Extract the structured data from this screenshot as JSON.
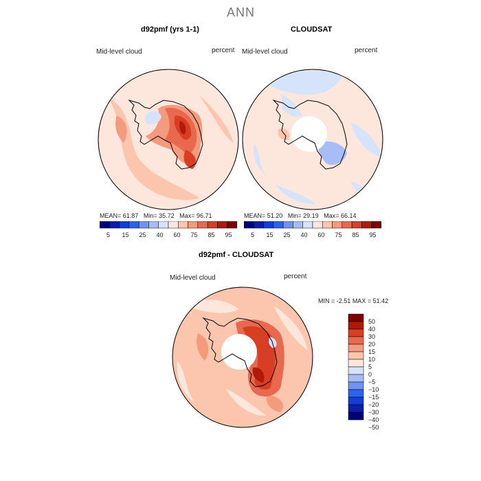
{
  "figure": {
    "suptitle": "ANN"
  },
  "panel_model": {
    "title": "d92pmf (yrs 1-1)",
    "field_label": "Mid-level cloud",
    "units": "percent",
    "mean_label": "MEAN=",
    "mean_value": "61.87",
    "min_label": "Min=",
    "min_value": "35.72",
    "max_label": "Max=",
    "max_value": "96.71"
  },
  "panel_obs": {
    "title": "CLOUDSAT",
    "field_label": "Mid-level cloud",
    "units": "percent",
    "mean_label": "MEAN=",
    "mean_value": "51.20",
    "min_label": "Min=",
    "min_value": "29.19",
    "max_label": "Max=",
    "max_value": "66.14"
  },
  "panel_diff": {
    "title": "d92pmf - CLOUDSAT",
    "field_label": "Mid-level cloud",
    "units": "percent",
    "min_label": "MIN =",
    "min_value": "-2.51",
    "max_label": "MAX =",
    "max_value": "51.42"
  },
  "colorbar_abs": {
    "colors": [
      "#00007a",
      "#0a1ea8",
      "#0f3fd6",
      "#2b62ee",
      "#6f93f0",
      "#a6bef5",
      "#d5e4fb",
      "#fde7dc",
      "#fbc6ad",
      "#f39b7c",
      "#e8694e",
      "#d83e24",
      "#b01a0a",
      "#7e0000"
    ],
    "tick_labels": [
      "5",
      "15",
      "25",
      "40",
      "60",
      "75",
      "85",
      "95"
    ]
  },
  "colorbar_diff": {
    "colors": [
      "#00007a",
      "#0a1ea8",
      "#0f3fd6",
      "#2b62ee",
      "#6f93f0",
      "#a6bef5",
      "#d5e4fb",
      "#fde7dc",
      "#fbc6ad",
      "#f39b7c",
      "#e8694e",
      "#d83e24",
      "#b01a0a",
      "#7e0000"
    ],
    "tick_labels": [
      "50",
      "40",
      "30",
      "20",
      "15",
      "10",
      "5",
      "0",
      "−5",
      "−10",
      "−15",
      "−20",
      "−30",
      "−40",
      "−50"
    ]
  }
}
